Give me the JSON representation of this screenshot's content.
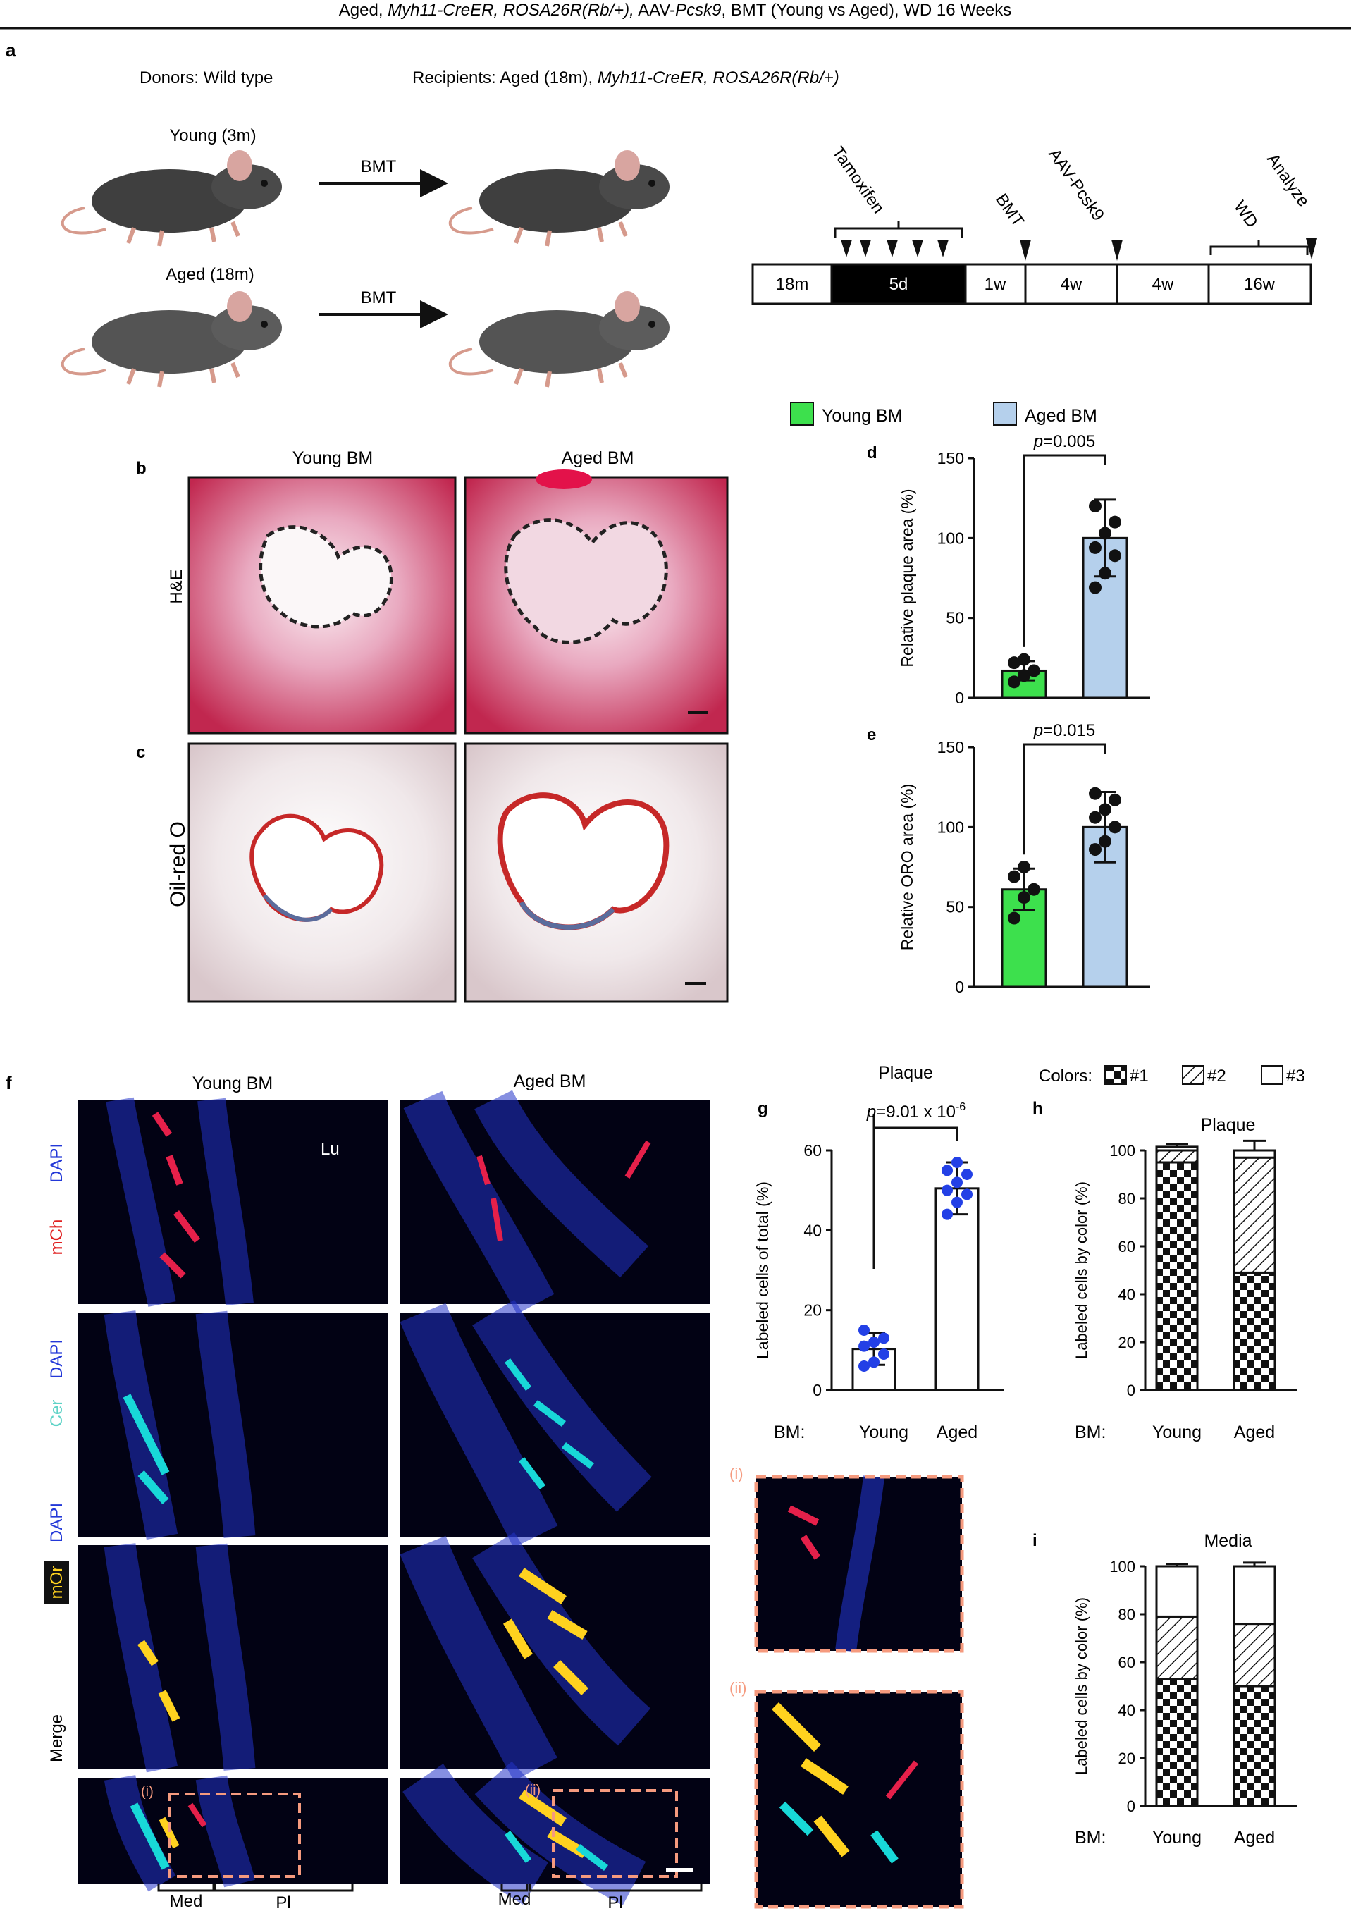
{
  "header": {
    "prefix": "Aged, ",
    "strain_italic": "Myh11-CreER, ROSA26R(Rb/+),",
    "middle": " AAV-",
    "pcsk9_italic": "Pcsk9",
    "suffix": ", BMT (Young vs Aged), WD 16 Weeks"
  },
  "panel_a": {
    "letter": "a",
    "donors": "Donors: Wild type",
    "recipients_prefix": "Recipients: Aged (18m), ",
    "recipients_italic": "Myh11-CreER, ROSA26R(Rb/+)",
    "young_label": "Young (3m)",
    "aged_label": "Aged (18m)",
    "bmt_label": "BMT",
    "timeline": {
      "segments": [
        "18m",
        "5d",
        "1w",
        "4w",
        "4w",
        "16w"
      ],
      "markers": [
        "Tamoxifen",
        "BMT",
        "AAV-Pcsk9",
        "WD",
        "Analyze"
      ]
    }
  },
  "legend": {
    "young": "Young BM",
    "aged": "Aged BM",
    "young_color": "#3de04d",
    "aged_color": "#b5d0ec"
  },
  "panel_bc": {
    "letter_b": "b",
    "letter_c": "c",
    "col_young": "Young BM",
    "col_aged": "Aged BM",
    "row_he": "H&E",
    "row_oro": "Oil-red O"
  },
  "panel_f": {
    "letter": "f",
    "col_young": "Young BM",
    "col_aged": "Aged BM",
    "lumen": "Lu",
    "rows": [
      {
        "dapi": "DAPI",
        "marker": "mCh"
      },
      {
        "dapi": "DAPI",
        "marker": "Cer"
      },
      {
        "dapi": "DAPI",
        "marker": "mOr"
      },
      {
        "dapi": "",
        "marker": "Merge"
      }
    ],
    "inset_i": "(i)",
    "inset_ii": "(ii)",
    "med": "Med",
    "pl": "Pl"
  },
  "panel_zoom": {
    "label_i": "(i)",
    "label_ii": "(ii)"
  },
  "panel_h_legend": {
    "prefix": "Colors:",
    "c1": "#1",
    "c2": "#2",
    "c3": "#3"
  },
  "chart_data": [
    {
      "panel": "d",
      "type": "bar",
      "categories": [
        "Young BM",
        "Aged BM"
      ],
      "values": [
        17,
        100
      ],
      "error": [
        6,
        24
      ],
      "points": [
        [
          10,
          14,
          17,
          22,
          24
        ],
        [
          69,
          78,
          89,
          94,
          103,
          110,
          120
        ]
      ],
      "ylabel": "Relative plaque area (%)",
      "ylim": [
        0,
        150
      ],
      "yticks": [
        0,
        50,
        100,
        150
      ],
      "pvalue": "p=0.005",
      "colors": [
        "#3de04d",
        "#b5d0ec"
      ]
    },
    {
      "panel": "e",
      "type": "bar",
      "categories": [
        "Young BM",
        "Aged BM"
      ],
      "values": [
        61,
        100
      ],
      "error": [
        13,
        22
      ],
      "points": [
        [
          43,
          56,
          61,
          69,
          75
        ],
        [
          86,
          91,
          100,
          106,
          111,
          117,
          121
        ]
      ],
      "ylabel": "Relative ORO area (%)",
      "ylim": [
        0,
        150
      ],
      "yticks": [
        0,
        50,
        100,
        150
      ],
      "pvalue": "p=0.015",
      "colors": [
        "#3de04d",
        "#b5d0ec"
      ]
    },
    {
      "panel": "g",
      "type": "bar",
      "title": "Plaque",
      "categories": [
        "Young",
        "Aged"
      ],
      "x_prefix": "BM:",
      "values": [
        10.3,
        50.5
      ],
      "error": [
        4,
        6.5
      ],
      "points": [
        [
          6,
          7,
          9,
          11,
          12,
          13,
          15
        ],
        [
          44,
          47,
          49,
          50,
          52,
          54,
          55,
          57
        ]
      ],
      "ylabel": "Labeled cells of total (%)",
      "ylim": [
        0,
        60
      ],
      "yticks": [
        0,
        20,
        40,
        60
      ],
      "pvalue_prefix": "p=9.01 x 10",
      "pvalue_exp": "-6",
      "point_color": "#2340e6"
    },
    {
      "panel": "h",
      "type": "bar",
      "title": "Plaque",
      "categories": [
        "Young",
        "Aged"
      ],
      "x_prefix": "BM:",
      "series": [
        {
          "name": "#1",
          "values": [
            95,
            49
          ],
          "error": [
            0,
            5
          ]
        },
        {
          "name": "#2",
          "values": [
            5,
            48
          ],
          "error": [
            0,
            0
          ]
        },
        {
          "name": "#3",
          "values": [
            1.5,
            3
          ],
          "error": [
            1,
            4
          ]
        }
      ],
      "ylabel": "Labeled cells by color (%)",
      "ylim": [
        0,
        100
      ],
      "yticks": [
        0,
        20,
        40,
        60,
        80,
        100
      ]
    },
    {
      "panel": "i",
      "type": "bar",
      "title": "Media",
      "categories": [
        "Young",
        "Aged"
      ],
      "x_prefix": "BM:",
      "series": [
        {
          "name": "#1",
          "values": [
            53,
            50
          ],
          "error": [
            6,
            6
          ]
        },
        {
          "name": "#2",
          "values": [
            26,
            26
          ],
          "error": [
            5,
            4
          ]
        },
        {
          "name": "#3",
          "values": [
            21,
            24
          ],
          "error": [
            1,
            1.5
          ]
        }
      ],
      "ylabel": "Labeled cells by color (%)",
      "ylim": [
        0,
        100
      ],
      "yticks": [
        0,
        20,
        40,
        60,
        80,
        100
      ]
    }
  ]
}
